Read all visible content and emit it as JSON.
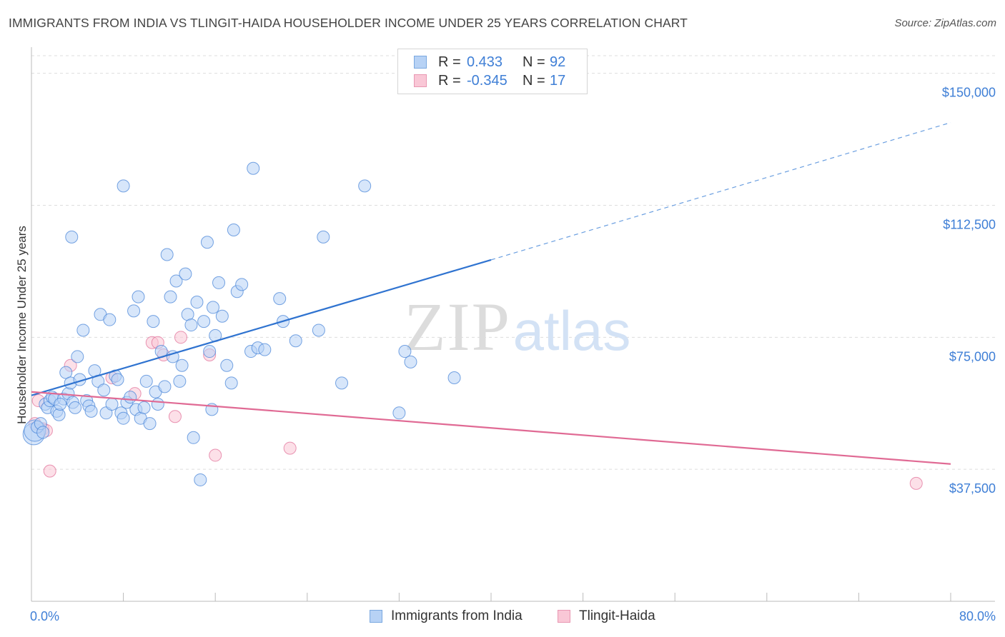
{
  "title": "IMMIGRANTS FROM INDIA VS TLINGIT-HAIDA HOUSEHOLDER INCOME UNDER 25 YEARS CORRELATION CHART",
  "source": "Source: ZipAtlas.com",
  "watermark": {
    "zip": "ZIP",
    "atlas": "atlas"
  },
  "legend": {
    "r_label": "R =",
    "n_label": "N =",
    "series": [
      {
        "name": "Immigrants from India",
        "r": "0.433",
        "n": "92"
      },
      {
        "name": "Tlingit-Haida",
        "r": "-0.345",
        "n": "17"
      }
    ]
  },
  "colors": {
    "blue": "#4a86d8",
    "blue_fill": "#b7d2f5",
    "pink": "#e06a94",
    "pink_fill": "#f9c7d6",
    "tick": "#3f7fd6",
    "grid": "#dddddd"
  },
  "chart_data": {
    "type": "scatter",
    "title": "IMMIGRANTS FROM INDIA VS TLINGIT-HAIDA HOUSEHOLDER INCOME UNDER 25 YEARS CORRELATION CHART",
    "xlabel": "",
    "ylabel": "Householder Income Under 25 years",
    "xlim": [
      0,
      80
    ],
    "ylim": [
      0,
      155000
    ],
    "x_tick_labels": [
      "0.0%",
      "80.0%"
    ],
    "y_ticks": [
      37500,
      75000,
      112500,
      150000
    ],
    "y_tick_labels": [
      "$37,500",
      "$75,000",
      "$112,500",
      "$150,000"
    ],
    "grid": true,
    "legend_position": "top-center",
    "series": [
      {
        "name": "Immigrants from India",
        "color": "#4a86d8",
        "trend": {
          "x": [
            0,
            40
          ],
          "y": [
            58500,
            97000
          ],
          "dashed_to": [
            80,
            136000
          ]
        },
        "points": [
          [
            0.2,
            47500
          ],
          [
            0.3,
            48500
          ],
          [
            0.5,
            49500
          ],
          [
            0.8,
            50500
          ],
          [
            1.0,
            48000
          ],
          [
            1.2,
            56000
          ],
          [
            1.4,
            55000
          ],
          [
            1.6,
            57000
          ],
          [
            1.8,
            58000
          ],
          [
            2.0,
            57500
          ],
          [
            2.2,
            54000
          ],
          [
            2.4,
            53000
          ],
          [
            2.8,
            57500
          ],
          [
            3.0,
            65000
          ],
          [
            3.2,
            59000
          ],
          [
            3.4,
            62000
          ],
          [
            3.6,
            56500
          ],
          [
            3.8,
            55000
          ],
          [
            4.0,
            69500
          ],
          [
            4.2,
            63000
          ],
          [
            4.5,
            77000
          ],
          [
            4.8,
            57000
          ],
          [
            5.0,
            55500
          ],
          [
            5.2,
            54000
          ],
          [
            5.5,
            65500
          ],
          [
            5.8,
            62500
          ],
          [
            6.0,
            81500
          ],
          [
            6.3,
            60000
          ],
          [
            6.5,
            53500
          ],
          [
            6.8,
            80000
          ],
          [
            7.0,
            56000
          ],
          [
            7.3,
            64000
          ],
          [
            7.5,
            63000
          ],
          [
            7.8,
            53500
          ],
          [
            8.0,
            52000
          ],
          [
            8.3,
            56500
          ],
          [
            8.6,
            58000
          ],
          [
            8.9,
            82500
          ],
          [
            9.1,
            54500
          ],
          [
            9.3,
            86500
          ],
          [
            9.5,
            52000
          ],
          [
            9.8,
            55000
          ],
          [
            10.0,
            62500
          ],
          [
            10.3,
            50500
          ],
          [
            10.6,
            79500
          ],
          [
            10.8,
            59500
          ],
          [
            11.0,
            56000
          ],
          [
            11.3,
            71000
          ],
          [
            11.6,
            61000
          ],
          [
            11.8,
            98500
          ],
          [
            12.1,
            86500
          ],
          [
            12.3,
            69500
          ],
          [
            12.6,
            91000
          ],
          [
            12.9,
            62500
          ],
          [
            13.1,
            67000
          ],
          [
            13.4,
            93000
          ],
          [
            13.6,
            81500
          ],
          [
            13.9,
            78500
          ],
          [
            14.1,
            46500
          ],
          [
            14.4,
            85000
          ],
          [
            14.7,
            34500
          ],
          [
            15.0,
            79500
          ],
          [
            15.3,
            102000
          ],
          [
            15.5,
            71000
          ],
          [
            15.7,
            54500
          ],
          [
            15.8,
            83500
          ],
          [
            16.0,
            75500
          ],
          [
            16.3,
            90500
          ],
          [
            16.6,
            81000
          ],
          [
            17.0,
            67000
          ],
          [
            17.4,
            62000
          ],
          [
            17.6,
            105500
          ],
          [
            17.9,
            88000
          ],
          [
            18.3,
            90000
          ],
          [
            19.1,
            71000
          ],
          [
            19.3,
            123000
          ],
          [
            19.7,
            72000
          ],
          [
            20.3,
            71500
          ],
          [
            21.6,
            86000
          ],
          [
            21.9,
            79500
          ],
          [
            23.0,
            74000
          ],
          [
            25.0,
            77000
          ],
          [
            25.4,
            103500
          ],
          [
            27.0,
            62000
          ],
          [
            29.0,
            118000
          ],
          [
            32.0,
            53500
          ],
          [
            32.5,
            71000
          ],
          [
            33.0,
            68000
          ],
          [
            36.8,
            63500
          ],
          [
            3.5,
            103500
          ],
          [
            8.0,
            118000
          ],
          [
            2.5,
            56000
          ]
        ]
      },
      {
        "name": "Tlingit-Haida",
        "color": "#e06a94",
        "trend": {
          "x": [
            0,
            80
          ],
          "y": [
            59500,
            39000
          ]
        },
        "points": [
          [
            0.3,
            50500
          ],
          [
            0.6,
            57000
          ],
          [
            1.0,
            49000
          ],
          [
            1.3,
            48500
          ],
          [
            1.6,
            37000
          ],
          [
            3.4,
            67000
          ],
          [
            7.0,
            63500
          ],
          [
            9.0,
            59000
          ],
          [
            10.5,
            73500
          ],
          [
            11.0,
            73500
          ],
          [
            11.5,
            70000
          ],
          [
            12.5,
            52500
          ],
          [
            13.0,
            75000
          ],
          [
            15.5,
            70000
          ],
          [
            16.0,
            41500
          ],
          [
            22.5,
            43500
          ],
          [
            77.0,
            33500
          ]
        ]
      }
    ]
  }
}
